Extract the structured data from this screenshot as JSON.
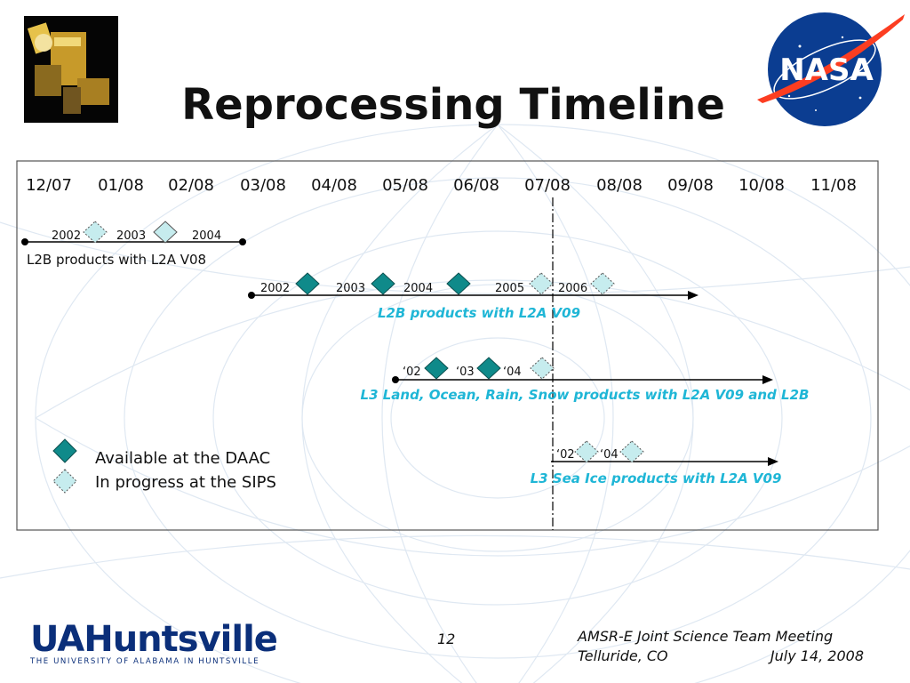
{
  "title": "Reprocessing Timeline",
  "timeline": {
    "months": [
      "12/07",
      "01/08",
      "02/08",
      "03/08",
      "04/08",
      "05/08",
      "06/08",
      "07/08",
      "08/08",
      "09/08",
      "10/08",
      "11/08"
    ],
    "tracks": [
      {
        "label": "L2B products with L2A V08",
        "markers": [
          {
            "label": "2002",
            "status": "in-progress"
          },
          {
            "label": "2003",
            "status": "in-progress"
          },
          {
            "label": "2004",
            "status": ""
          }
        ]
      },
      {
        "label": "L2B products with L2A V09",
        "markers": [
          {
            "label": "2002",
            "status": "available"
          },
          {
            "label": "2003",
            "status": "available"
          },
          {
            "label": "2004",
            "status": "available"
          },
          {
            "label": "2005",
            "status": "in-progress"
          },
          {
            "label": "2006",
            "status": "in-progress"
          }
        ]
      },
      {
        "label": "L3 Land, Ocean, Rain, Snow products with L2A V09 and L2B",
        "markers": [
          {
            "label": "‘02",
            "status": "available"
          },
          {
            "label": "‘03",
            "status": "available"
          },
          {
            "label": "‘04",
            "status": "in-progress"
          }
        ]
      },
      {
        "label": "L3 Sea Ice products with L2A V09",
        "markers": [
          {
            "label": "‘02",
            "status": "in-progress"
          },
          {
            "label": "‘04",
            "status": "in-progress"
          }
        ]
      }
    ],
    "legend": [
      {
        "label": "Available at the DAAC",
        "status": "available"
      },
      {
        "label": "In progress at the SIPS",
        "status": "in-progress"
      }
    ]
  },
  "colors": {
    "available_fill": "#0f8a8a",
    "in_progress_fill": "#c6ecee",
    "highlight_text": "#1fb6d6",
    "today_line": "#000000"
  },
  "footer": {
    "logo_main": "UAHuntsville",
    "logo_ua": "UA",
    "logo_rest": "Huntsville",
    "logo_sub": "THE UNIVERSITY OF ALABAMA IN HUNTSVILLE",
    "page_number": "12",
    "meeting": "AMSR-E Joint Science Team Meeting",
    "location": "Telluride, CO",
    "date": "July 14, 2008"
  }
}
